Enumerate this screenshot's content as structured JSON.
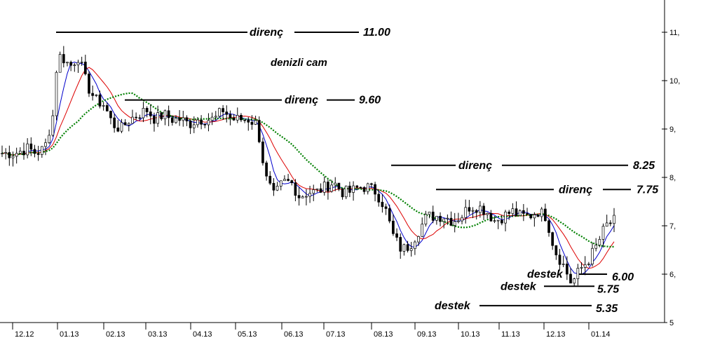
{
  "chart_data": {
    "type": "candlestick",
    "title": "denizli cam",
    "x_ticks": [
      "12.12",
      "01.13",
      "02.13",
      "03.13",
      "04.13",
      "05.13",
      "06.13",
      "07.13",
      "08.13",
      "09.13",
      "10.13",
      "11.13",
      "12.13",
      "01.14"
    ],
    "y_ticks": [
      "11,",
      "10,",
      "9,",
      "8,",
      "7,",
      "6,",
      "5"
    ],
    "ylim": [
      5,
      11.7
    ],
    "grid": false,
    "price_anchors": [
      [
        0,
        8.5
      ],
      [
        3,
        8.5
      ],
      [
        6,
        8.6
      ],
      [
        8,
        8.5
      ],
      [
        10,
        8.6
      ],
      [
        12,
        9.3
      ],
      [
        13,
        10.5
      ],
      [
        14,
        10.5
      ],
      [
        16,
        10.3
      ],
      [
        18,
        10.5
      ],
      [
        20,
        9.9
      ],
      [
        22,
        9.6
      ],
      [
        24,
        9.5
      ],
      [
        26,
        9.1
      ],
      [
        28,
        9.0
      ],
      [
        30,
        9.2
      ],
      [
        32,
        9.3
      ],
      [
        34,
        9.4
      ],
      [
        36,
        9.2
      ],
      [
        38,
        9.3
      ],
      [
        40,
        9.2
      ],
      [
        42,
        9.2
      ],
      [
        44,
        9.1
      ],
      [
        46,
        9.2
      ],
      [
        48,
        9.2
      ],
      [
        50,
        9.2
      ],
      [
        52,
        9.4
      ],
      [
        54,
        9.2
      ],
      [
        56,
        9.2
      ],
      [
        58,
        9.2
      ],
      [
        60,
        9.1
      ],
      [
        62,
        8.0
      ],
      [
        64,
        7.6
      ],
      [
        66,
        7.9
      ],
      [
        68,
        7.9
      ],
      [
        70,
        7.6
      ],
      [
        72,
        7.7
      ],
      [
        74,
        7.7
      ],
      [
        76,
        7.8
      ],
      [
        78,
        7.9
      ],
      [
        80,
        7.7
      ],
      [
        82,
        7.7
      ],
      [
        84,
        7.8
      ],
      [
        86,
        7.8
      ],
      [
        88,
        7.7
      ],
      [
        90,
        7.4
      ],
      [
        92,
        6.8
      ],
      [
        94,
        6.5
      ],
      [
        96,
        6.6
      ],
      [
        98,
        6.9
      ],
      [
        100,
        7.2
      ],
      [
        102,
        7.2
      ],
      [
        104,
        7.2
      ],
      [
        106,
        7.1
      ],
      [
        108,
        7.2
      ],
      [
        110,
        7.4
      ],
      [
        112,
        7.4
      ],
      [
        114,
        7.3
      ],
      [
        116,
        7.1
      ],
      [
        118,
        7.2
      ],
      [
        120,
        7.3
      ],
      [
        122,
        7.2
      ],
      [
        124,
        7.2
      ],
      [
        126,
        7.3
      ],
      [
        128,
        7.2
      ],
      [
        130,
        6.5
      ],
      [
        132,
        6.2
      ],
      [
        134,
        5.8
      ],
      [
        136,
        6.1
      ],
      [
        138,
        6.3
      ],
      [
        140,
        6.6
      ],
      [
        142,
        7.0
      ],
      [
        144,
        7.1
      ]
    ],
    "moving_averages": [
      {
        "color": "#0000cc",
        "period": 5,
        "style": "solid"
      },
      {
        "color": "#dd0000",
        "period": 10,
        "style": "solid"
      },
      {
        "color": "#008000",
        "period": 22,
        "style": "dotted"
      }
    ],
    "annotations": [
      {
        "kind": "resistance",
        "label": "direnç",
        "level_text": "11.00",
        "value": 11.0
      },
      {
        "kind": "resistance",
        "label": "direnç",
        "level_text": "9.60",
        "value": 9.6
      },
      {
        "kind": "resistance",
        "label": "direnç",
        "level_text": "8.25",
        "value": 8.25
      },
      {
        "kind": "resistance",
        "label": "direnç",
        "level_text": "7.75",
        "value": 7.75
      },
      {
        "kind": "support",
        "label": "destek",
        "level_text": "6.00",
        "value": 6.0
      },
      {
        "kind": "support",
        "label": "destek",
        "level_text": "5.75",
        "value": 5.75
      },
      {
        "kind": "support",
        "label": "destek",
        "level_text": "5.35",
        "value": 5.35
      }
    ]
  }
}
